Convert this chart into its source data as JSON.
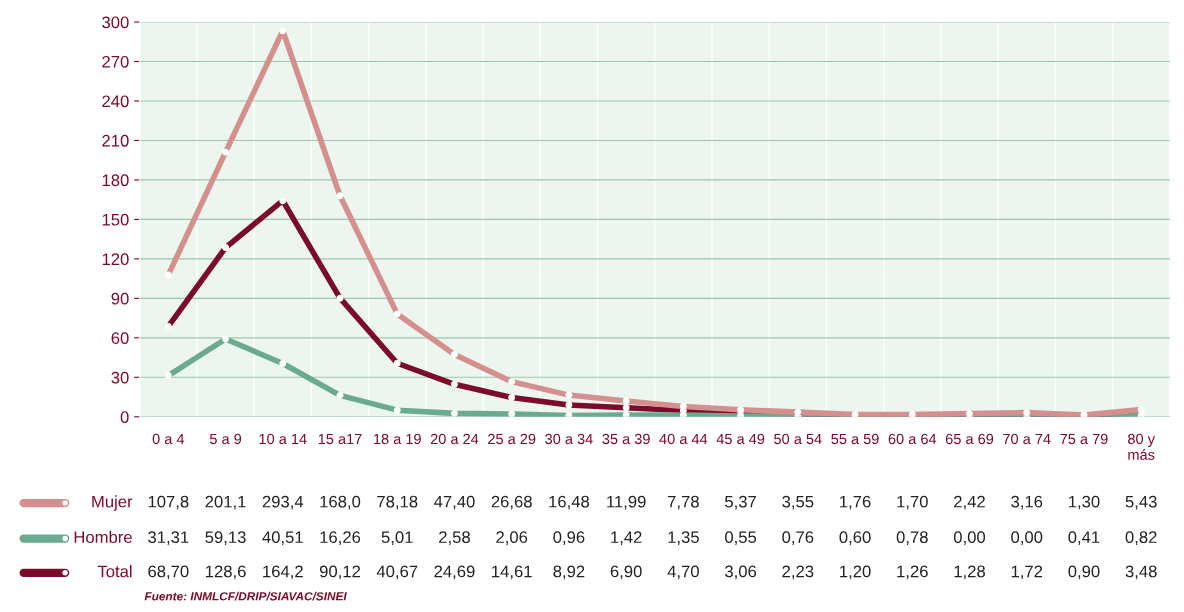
{
  "chart_data": {
    "type": "line",
    "categories": [
      "0 a 4",
      "5 a 9",
      "10 a 14",
      "15 a17",
      "18 a 19",
      "20 a 24",
      "25 a 29",
      "30 a 34",
      "35 a 39",
      "40 a 44",
      "45 a 49",
      "50 a 54",
      "55 a 59",
      "60 a 64",
      "65 a 69",
      "70 a 74",
      "75 a 79",
      "80 y\nmás"
    ],
    "series": [
      {
        "name": "Mujer",
        "color": "#d4908e",
        "values": [
          107.8,
          201.1,
          293.4,
          168.0,
          78.18,
          47.4,
          26.68,
          16.48,
          11.99,
          7.78,
          5.37,
          3.55,
          1.76,
          1.7,
          2.42,
          3.16,
          1.3,
          5.43
        ],
        "value_labels": [
          "107,8",
          "201,1",
          "293,4",
          "168,0",
          "78,18",
          "47,40",
          "26,68",
          "16,48",
          "11,99",
          "7,78",
          "5,37",
          "3,55",
          "1,76",
          "1,70",
          "2,42",
          "3,16",
          "1,30",
          "5,43"
        ]
      },
      {
        "name": "Hombre",
        "color": "#6aaa8f",
        "values": [
          31.31,
          59.13,
          40.51,
          16.26,
          5.01,
          2.58,
          2.06,
          0.96,
          1.42,
          1.35,
          0.55,
          0.76,
          0.6,
          0.78,
          0.0,
          0.0,
          0.41,
          0.82
        ],
        "value_labels": [
          "31,31",
          "59,13",
          "40,51",
          "16,26",
          "5,01",
          "2,58",
          "2,06",
          "0,96",
          "1,42",
          "1,35",
          "0,55",
          "0,76",
          "0,60",
          "0,78",
          "0,00",
          "0,00",
          "0,41",
          "0,82"
        ]
      },
      {
        "name": "Total",
        "color": "#7b0b2a",
        "values": [
          68.7,
          128.6,
          164.2,
          90.12,
          40.67,
          24.69,
          14.61,
          8.92,
          6.9,
          4.7,
          3.06,
          2.23,
          1.2,
          1.26,
          1.28,
          1.72,
          0.9,
          3.48
        ],
        "value_labels": [
          "68,70",
          "128,6",
          "164,2",
          "90,12",
          "40,67",
          "24,69",
          "14,61",
          "8,92",
          "6,90",
          "4,70",
          "3,06",
          "2,23",
          "1,20",
          "1,26",
          "1,28",
          "1,72",
          "0,90",
          "3,48"
        ]
      }
    ],
    "ylim": [
      0,
      300
    ],
    "yticks": [
      0,
      30,
      60,
      90,
      120,
      150,
      180,
      210,
      240,
      270,
      300
    ],
    "grid": "y",
    "marker": "circle",
    "line_style": "solid",
    "legend": "bottom left",
    "annotations": [
      "Fuente: INMLCF/DRIP/SIAVAC/SINEI"
    ]
  }
}
